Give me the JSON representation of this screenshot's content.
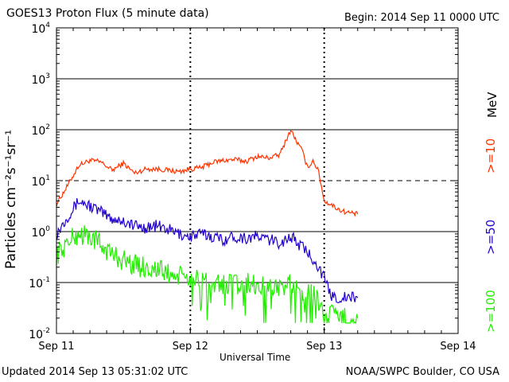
{
  "header": {
    "title": "GOES13 Proton Flux (5 minute data)",
    "begin": "Begin: 2014 Sep 11 0000 UTC"
  },
  "footer": {
    "updated": "Updated 2014 Sep 13 05:31:02 UTC",
    "credit": "NOAA/SWPC Boulder, CO USA"
  },
  "colors": {
    "ge10": "#ff3300",
    "ge50": "#2200cc",
    "ge100": "#22ee00",
    "grid": "#000000"
  },
  "chart_data": {
    "type": "line",
    "title": "GOES13 Proton Flux (5 minute data)",
    "xlabel": "Universal Time",
    "ylabel": "Particles cm⁻²s⁻¹sr⁻¹",
    "units_label": "MeV",
    "y_scale": "log",
    "ylim": [
      0.01,
      10000
    ],
    "y_ticks": [
      0.01,
      0.1,
      1,
      10,
      100,
      1000,
      10000
    ],
    "y_tick_labels": [
      {
        "base": "10",
        "exp": "-2"
      },
      {
        "base": "10",
        "exp": "-1"
      },
      {
        "base": "10",
        "exp": "0"
      },
      {
        "base": "10",
        "exp": "1"
      },
      {
        "base": "10",
        "exp": "2"
      },
      {
        "base": "10",
        "exp": "3"
      },
      {
        "base": "10",
        "exp": "4"
      }
    ],
    "xlim": [
      "2014-09-11 00:00",
      "2014-09-14 00:00"
    ],
    "x_tick_labels": [
      "Sep 11",
      "Sep 12",
      "Sep 13",
      "Sep 14"
    ],
    "grid": true,
    "series": [
      {
        "name": ">=10",
        "color": "#ff3300",
        "x_hours": [
          0,
          2,
          4,
          6,
          8,
          10,
          12,
          14,
          16,
          18,
          20,
          22,
          24,
          26,
          28,
          30,
          32,
          34,
          36,
          38,
          40,
          42,
          43,
          44,
          45,
          46,
          47,
          48,
          49,
          50,
          51,
          52,
          53,
          54
        ],
        "values": [
          3.5,
          8,
          20,
          25,
          23,
          16,
          22,
          14,
          17,
          17,
          16,
          15,
          17,
          18,
          23,
          25,
          26,
          24,
          30,
          28,
          32,
          100,
          60,
          40,
          18,
          25,
          15,
          4,
          3.5,
          3,
          2.6,
          2.4,
          2.3,
          2.2
        ]
      },
      {
        "name": ">=50",
        "color": "#2200cc",
        "x_hours": [
          0,
          2,
          4,
          6,
          8,
          10,
          12,
          14,
          16,
          18,
          20,
          22,
          24,
          26,
          28,
          30,
          32,
          34,
          36,
          38,
          40,
          42,
          44,
          46,
          47,
          48,
          49,
          50,
          51,
          52,
          53,
          54
        ],
        "values": [
          0.9,
          2.0,
          4.0,
          3.2,
          2.4,
          1.8,
          1.6,
          1.3,
          1.2,
          1.3,
          1.1,
          0.9,
          0.8,
          0.9,
          0.8,
          0.7,
          0.8,
          0.75,
          0.8,
          0.7,
          0.6,
          0.8,
          0.5,
          0.3,
          0.2,
          0.12,
          0.06,
          0.05,
          0.05,
          0.05,
          0.05,
          0.05
        ]
      },
      {
        "name": ">=100",
        "color": "#22ee00",
        "x_hours": [
          0,
          2,
          4,
          6,
          8,
          10,
          12,
          14,
          16,
          18,
          20,
          22,
          24,
          26,
          28,
          30,
          32,
          34,
          36,
          38,
          40,
          42,
          44,
          46,
          47,
          48,
          49,
          50,
          51,
          52,
          53,
          54
        ],
        "values": [
          0.35,
          0.6,
          0.9,
          0.8,
          0.55,
          0.35,
          0.28,
          0.22,
          0.2,
          0.18,
          0.15,
          0.13,
          0.12,
          0.1,
          0.1,
          0.09,
          0.09,
          0.1,
          0.09,
          0.08,
          0.08,
          0.09,
          0.07,
          0.06,
          0.04,
          0.03,
          0.025,
          0.02,
          0.02,
          0.02,
          0.02,
          0.02
        ]
      }
    ]
  }
}
